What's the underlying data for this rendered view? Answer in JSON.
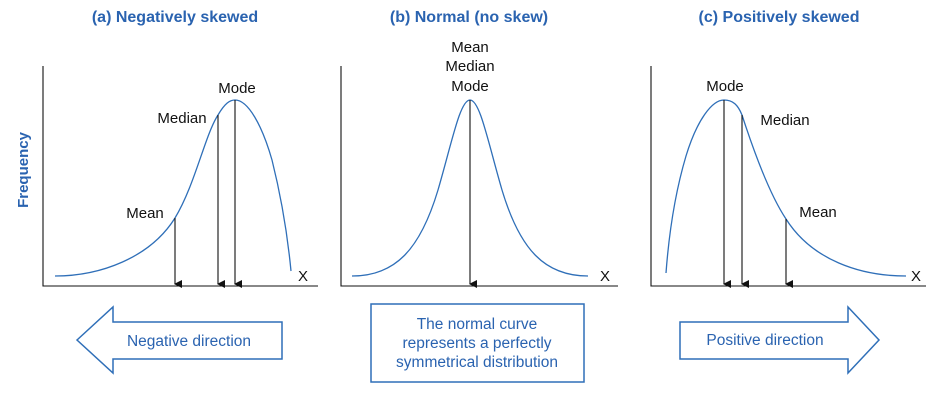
{
  "ylabel": "Frequency",
  "panels": [
    {
      "title": "(a) Negatively skewed",
      "x_label": "X",
      "markers": {
        "mean": "Mean",
        "median": "Median",
        "mode": "Mode"
      },
      "direction": "Negative direction"
    },
    {
      "title": "(b) Normal (no skew)",
      "x_label": "X",
      "markers": {
        "mean": "Mean",
        "median": "Median",
        "mode": "Mode"
      },
      "note": [
        "The normal curve",
        "represents a perfectly",
        "symmetrical distribution"
      ]
    },
    {
      "title": "(c) Positively skewed",
      "x_label": "X",
      "markers": {
        "mean": "Mean",
        "median": "Median",
        "mode": "Mode"
      },
      "direction": "Positive direction"
    }
  ],
  "colors": {
    "accent": "#2a63b0",
    "curve": "#2f6fb8",
    "text": "#111111"
  }
}
